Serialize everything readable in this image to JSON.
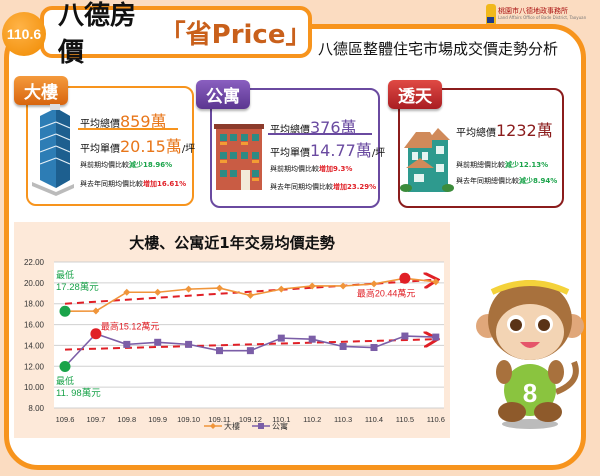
{
  "header": {
    "badge": "110.6",
    "title_main": "八德房價",
    "title_accent": "「省Price」",
    "subtitle": "八德區整體住宅市場成交價走勢分析",
    "logo_text": "桃園市八德地政事務所",
    "logo_sub": "Land Affairs Office of Bade District, Taoyuan"
  },
  "cards": [
    {
      "tag": "大樓",
      "tag_color": "#e8761a",
      "border_color": "#f7941d",
      "avg_total_label": "平均總價",
      "avg_total_value": "859萬",
      "avg_unit_label": "平均單價",
      "avg_unit_value": "20.15萬",
      "avg_unit_suffix": "/坪",
      "cmp_prev_label": "與前期均價比較",
      "cmp_prev_value": "減少18.96%",
      "cmp_prev_dir": "down",
      "cmp_year_label": "與去年同期均價比較",
      "cmp_year_value": "增加16.61%",
      "cmp_year_dir": "up"
    },
    {
      "tag": "公寓",
      "tag_color": "#6a3d9a",
      "border_color": "#6a4aa0",
      "avg_total_label": "平均總價",
      "avg_total_value": "376萬",
      "avg_unit_label": "平均單價",
      "avg_unit_value": "14.77萬",
      "avg_unit_suffix": "/坪",
      "cmp_prev_label": "與前期均價比較",
      "cmp_prev_value": "增加9.3%",
      "cmp_prev_dir": "up",
      "cmp_year_label": "與去年同期均價比較",
      "cmp_year_value": "增加23.29%",
      "cmp_year_dir": "up"
    },
    {
      "tag": "透天",
      "tag_color": "#c1272d",
      "border_color": "#8b1c1c",
      "avg_total_label": "平均總價",
      "avg_total_value": "1232萬",
      "cmp_prev_label": "與前期總價比較",
      "cmp_prev_value": "減少12.13%",
      "cmp_prev_dir": "down",
      "cmp_year_label": "與去年同期總價比較",
      "cmp_year_value": "減少8.94%",
      "cmp_year_dir": "down"
    }
  ],
  "chart_data": {
    "type": "line",
    "title": "大樓、公寓近1年交易均價走勢",
    "xlabel": "",
    "ylabel": "",
    "categories": [
      "109.6",
      "109.7",
      "109.8",
      "109.9",
      "109.10",
      "109.11",
      "109.12",
      "110.1",
      "110.2",
      "110.3",
      "110.4",
      "110.5",
      "110.6"
    ],
    "yticks": [
      "8.00",
      "10.00",
      "12.00",
      "14.00",
      "16.00",
      "18.00",
      "20.00",
      "22.00"
    ],
    "ylim": [
      8,
      22
    ],
    "grid": true,
    "legend_position": "bottom",
    "series": [
      {
        "name": "大樓",
        "color": "#f0953a",
        "marker": "diamond",
        "values": [
          17.28,
          17.3,
          19.1,
          19.1,
          19.4,
          19.5,
          18.8,
          19.4,
          19.7,
          19.7,
          19.9,
          20.44,
          20.1
        ]
      },
      {
        "name": "公寓",
        "color": "#7b5ea7",
        "marker": "square",
        "values": [
          11.98,
          15.12,
          14.1,
          14.3,
          14.1,
          13.5,
          13.5,
          14.7,
          14.6,
          13.9,
          13.8,
          14.9,
          14.8
        ]
      }
    ],
    "annotations": [
      {
        "series": "大樓",
        "index": 0,
        "label_1": "最低",
        "label_2": "17.28萬元",
        "color": "#1aa34a"
      },
      {
        "series": "大樓",
        "index": 11,
        "label_1": "最高20.44萬元",
        "color": "#e01f26"
      },
      {
        "series": "公寓",
        "index": 0,
        "label_1": "最低",
        "label_2": "11. 98萬元",
        "color": "#1aa34a"
      },
      {
        "series": "公寓",
        "index": 1,
        "label_1": "最高15.12萬元",
        "color": "#e01f26"
      }
    ],
    "trendlines": [
      {
        "series": "大樓",
        "from": 18.0,
        "to": 20.3,
        "color": "#e01f26",
        "style": "dashed-arrow"
      },
      {
        "series": "公寓",
        "from": 13.6,
        "to": 14.6,
        "color": "#e01f26",
        "style": "dashed-arrow"
      }
    ]
  },
  "mascot": {
    "shirt_number": "8"
  }
}
